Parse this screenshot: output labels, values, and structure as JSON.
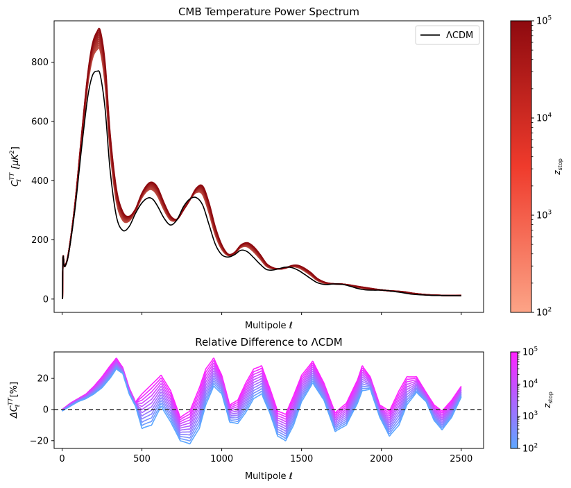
{
  "chart_data": [
    {
      "type": "line",
      "title": "CMB Temperature Power Spectrum",
      "xlabel": "Multipole ℓ",
      "ylabel_main": "C",
      "ylabel_sup": "TT",
      "ylabel_sub": "ℓ",
      "ylabel_unit": "[μK",
      "ylabel_unit_sup": "2",
      "ylabel_unit_end": "]",
      "xlim": [
        -50,
        2640
      ],
      "ylim": [
        -45,
        940
      ],
      "yticks": [
        0,
        200,
        400,
        600,
        800
      ],
      "xticks": [
        0,
        500,
        1000,
        1500,
        2000,
        2500
      ],
      "xtick_labels_visible": false,
      "legend": {
        "label": "ΛCDM",
        "placement": "top-right"
      },
      "reference_series": {
        "name": "ΛCDM",
        "color": "#000000",
        "x": [
          2,
          6,
          12,
          20,
          40,
          80,
          120,
          160,
          190,
          220,
          240,
          270,
          300,
          340,
          380,
          420,
          460,
          500,
          540,
          570,
          600,
          640,
          680,
          720,
          760,
          800,
          840,
          880,
          920,
          960,
          1000,
          1040,
          1080,
          1120,
          1160,
          1200,
          1240,
          1280,
          1320,
          1360,
          1400,
          1440,
          1480,
          1520,
          1560,
          1600,
          1650,
          1700,
          1750,
          1800,
          1850,
          1900,
          1950,
          2000,
          2050,
          2100,
          2150,
          2200,
          2300,
          2400,
          2500
        ],
        "y": [
          0,
          140,
          115,
          112,
          150,
          300,
          500,
          680,
          755,
          770,
          755,
          640,
          440,
          280,
          232,
          245,
          290,
          325,
          342,
          336,
          312,
          272,
          250,
          268,
          312,
          338,
          343,
          318,
          252,
          185,
          150,
          142,
          150,
          165,
          160,
          140,
          118,
          100,
          98,
          103,
          108,
          106,
          97,
          83,
          68,
          55,
          49,
          51,
          50,
          44,
          36,
          31,
          30,
          30,
          28,
          24,
          20,
          16,
          13,
          12,
          11
        ]
      },
      "series_group": {
        "legend_name": "z_stop",
        "count": 10,
        "color_low": "#fca487",
        "color_high": "#8e0a0f"
      },
      "colorbar": {
        "label": "z",
        "label_sub": "stop",
        "scale": "log",
        "ticks": [
          {
            "base": "10",
            "exp": "2"
          },
          {
            "base": "10",
            "exp": "3"
          },
          {
            "base": "10",
            "exp": "4"
          },
          {
            "base": "10",
            "exp": "5"
          }
        ],
        "colormap": "Reds",
        "color_low": "#fca487",
        "color_high": "#8e0a0f"
      }
    },
    {
      "type": "line",
      "title": "Relative Difference to ΛCDM",
      "xlabel": "Multipole ℓ",
      "ylabel_main": "ΔC",
      "ylabel_sup": "TT",
      "ylabel_sub": "ℓ",
      "ylabel_unit": "[%]",
      "xlim": [
        -50,
        2640
      ],
      "ylim": [
        -25,
        37
      ],
      "yticks": [
        -20,
        0,
        20
      ],
      "xticks": [
        0,
        500,
        1000,
        1500,
        2000,
        2500
      ],
      "xtick_labels": [
        "0",
        "500",
        "1000",
        "1500",
        "2000",
        "2500"
      ],
      "reference_line": {
        "y": 0,
        "style": "dashed",
        "color": "#333333"
      },
      "envelope": {
        "x": [
          0,
          50,
          100,
          150,
          200,
          250,
          300,
          340,
          380,
          420,
          460,
          500,
          560,
          620,
          680,
          740,
          800,
          860,
          900,
          950,
          1000,
          1050,
          1100,
          1150,
          1200,
          1250,
          1300,
          1350,
          1400,
          1450,
          1500,
          1570,
          1640,
          1710,
          1780,
          1850,
          1880,
          1930,
          1990,
          2050,
          2110,
          2160,
          2220,
          2280,
          2330,
          2380,
          2440,
          2500
        ],
        "y_high": [
          0,
          4,
          7,
          10,
          15,
          21,
          28,
          33,
          27,
          14,
          5,
          10,
          16,
          22,
          12,
          -5,
          -1,
          14,
          26,
          33,
          22,
          3,
          6,
          17,
          26,
          28,
          14,
          -1,
          -3,
          9,
          22,
          31,
          17,
          -2,
          4,
          19,
          28,
          21,
          3,
          -1,
          12,
          21,
          21,
          11,
          3,
          -1,
          6,
          15
        ],
        "y_low": [
          -1,
          2,
          5,
          7,
          10,
          14,
          20,
          26,
          23,
          10,
          2,
          -12,
          -10,
          2,
          -8,
          -20,
          -22,
          -12,
          3,
          15,
          10,
          -8,
          -9,
          -2,
          7,
          10,
          -2,
          -17,
          -20,
          -10,
          5,
          17,
          6,
          -14,
          -10,
          4,
          12,
          13,
          -5,
          -17,
          -10,
          3,
          11,
          5,
          -7,
          -13,
          -5,
          8
        ]
      },
      "series_group": {
        "legend_name": "z_stop",
        "count": 12,
        "color_low": "#5da7ff",
        "color_high": "#ff22ff"
      },
      "colorbar": {
        "label": "z",
        "label_sub": "stop",
        "scale": "log",
        "ticks": [
          {
            "base": "10",
            "exp": "2"
          },
          {
            "base": "10",
            "exp": "3"
          },
          {
            "base": "10",
            "exp": "4"
          },
          {
            "base": "10",
            "exp": "5"
          }
        ],
        "colormap": "cool",
        "color_low": "#5da7ff",
        "color_high": "#ff22ff"
      }
    }
  ]
}
